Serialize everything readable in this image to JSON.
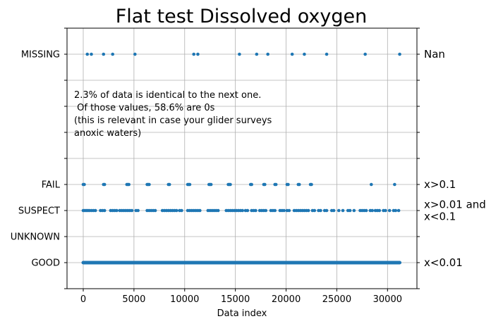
{
  "chart_data": {
    "type": "scatter",
    "title": "Flat test Dissolved oxygen",
    "xlabel": "Data index",
    "ylabel": "",
    "xlim": [
      -1600,
      32900
    ],
    "ylim": [
      0,
      10
    ],
    "x_ticks": [
      0,
      5000,
      10000,
      15000,
      20000,
      25000,
      30000
    ],
    "x_tick_labels": [
      "0",
      "5000",
      "10000",
      "15000",
      "20000",
      "25000",
      "30000"
    ],
    "y_ticks": [
      0,
      1,
      2,
      3,
      4,
      5,
      6,
      7,
      8,
      9,
      10
    ],
    "y_tick_labels": [
      {
        "value": 1,
        "label": "GOOD"
      },
      {
        "value": 2,
        "label": "UNKNOWN"
      },
      {
        "value": 3,
        "label": "SUSPECT"
      },
      {
        "value": 4,
        "label": "FAIL"
      },
      {
        "value": 9,
        "label": "MISSING"
      }
    ],
    "right_labels": [
      {
        "value": 9,
        "lines": [
          "Nan"
        ]
      },
      {
        "value": 4,
        "lines": [
          "x>0.1"
        ]
      },
      {
        "value": 3,
        "lines": [
          "x>0.01 and",
          "x<0.1"
        ]
      },
      {
        "value": 1,
        "lines": [
          "x<0.01"
        ]
      }
    ],
    "annotation": [
      "2.3% of data is identical to the next one.",
      " Of those values, 58.6% are 0s",
      "(this is relevant in case your glider surveys",
      "anoxic waters)"
    ],
    "grid": true,
    "marker_color": "#1f77b4",
    "series": [
      {
        "flag": 1,
        "continuous_range": [
          0,
          31200
        ]
      },
      {
        "flag": 3,
        "x": [
          0,
          150,
          300,
          450,
          600,
          800,
          1000,
          1200,
          1700,
          1900,
          2100,
          2700,
          2900,
          3100,
          3300,
          3600,
          3800,
          4000,
          4200,
          4400,
          4600,
          4800,
          5200,
          5400,
          6300,
          6500,
          6700,
          6900,
          7100,
          7800,
          8000,
          8200,
          8400,
          8600,
          8800,
          9000,
          9200,
          9500,
          9700,
          10300,
          10500,
          10700,
          10900,
          11100,
          11300,
          11500,
          12300,
          12500,
          12700,
          12900,
          13100,
          13300,
          14100,
          14300,
          14500,
          14700,
          14900,
          15100,
          15300,
          15500,
          15700,
          16000,
          16200,
          16600,
          16800,
          17000,
          17400,
          17600,
          17800,
          18000,
          18500,
          18700,
          18900,
          19400,
          19600,
          19800,
          20100,
          20300,
          20800,
          21000,
          21200,
          21400,
          21600,
          21800,
          22000,
          22200,
          22600,
          22800,
          23200,
          23400,
          23800,
          24000,
          24500,
          24700,
          25200,
          25600,
          26100,
          26300,
          26700,
          27300,
          27500,
          27700,
          27900,
          28300,
          28500,
          28800,
          29000,
          29200,
          29600,
          29800,
          30200,
          30600,
          30800,
          31100
        ]
      },
      {
        "flag": 4,
        "x": [
          0,
          100,
          2000,
          2100,
          4300,
          4400,
          4500,
          6300,
          6400,
          6500,
          8400,
          8500,
          10300,
          10400,
          10500,
          12400,
          12500,
          12600,
          14300,
          14400,
          14500,
          16500,
          16600,
          17800,
          17900,
          18900,
          19000,
          20100,
          20200,
          21200,
          21300,
          22400,
          22500,
          28400,
          30700
        ]
      },
      {
        "flag": 9,
        "x": [
          400,
          800,
          2000,
          2900,
          5100,
          10900,
          11300,
          15400,
          17100,
          18200,
          20600,
          21800,
          24000,
          27800,
          31200
        ]
      }
    ]
  }
}
